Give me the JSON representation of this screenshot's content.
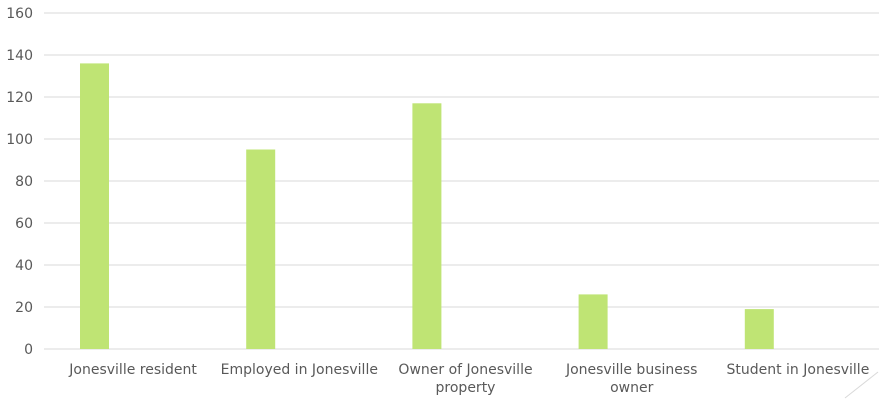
{
  "chart_data": {
    "type": "bar",
    "categories": [
      [
        "Jonesville resident"
      ],
      [
        "Employed in Jonesville"
      ],
      [
        "Owner of Jonesville",
        "property"
      ],
      [
        "Jonesville business",
        "owner"
      ],
      [
        "Student in Jonesville"
      ]
    ],
    "values": [
      136,
      95,
      117,
      26,
      19
    ],
    "ylim": [
      0,
      160
    ],
    "yticks": [
      "0",
      "20",
      "40",
      "60",
      "80",
      "100",
      "120",
      "140",
      "160"
    ],
    "grid": true,
    "legend": "none",
    "colors": {
      "bar": "#bfe474",
      "grid": "#d9d9d9",
      "text": "#595959"
    }
  }
}
